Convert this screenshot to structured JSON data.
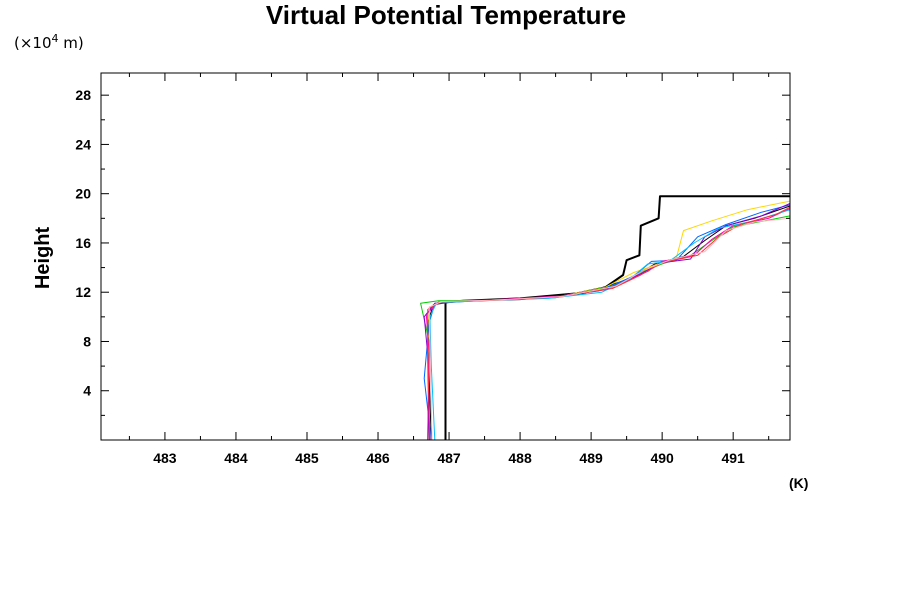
{
  "chart_data": {
    "type": "line",
    "title": "Virtual Potential Temperature",
    "ylabel": "Height",
    "y_unit_prefix": "(×10",
    "y_unit_exponent": "4",
    "y_unit_suffix": " m)",
    "x_unit": "(K)",
    "xlim": [
      482.1,
      491.8
    ],
    "ylim": [
      0,
      29.8
    ],
    "x_ticks": [
      483,
      484,
      485,
      486,
      487,
      488,
      489,
      490,
      491
    ],
    "x_tick_labels": [
      "483",
      "484",
      "485",
      "486",
      "487",
      "488",
      "489",
      "490",
      "491"
    ],
    "y_ticks": [
      4,
      8,
      12,
      16,
      20,
      24,
      28
    ],
    "y_tick_labels": [
      "4",
      "8",
      "12",
      "16",
      "20",
      "24",
      "28"
    ],
    "legend": "none",
    "grid": false,
    "series": [
      {
        "color": "#000000",
        "width": 2,
        "points": [
          [
            486.95,
            0
          ],
          [
            486.95,
            11.2
          ],
          [
            487.2,
            11.3
          ],
          [
            488.0,
            11.5
          ],
          [
            488.8,
            11.9
          ],
          [
            489.2,
            12.4
          ],
          [
            489.45,
            13.4
          ],
          [
            489.5,
            14.6
          ],
          [
            489.68,
            15.0
          ],
          [
            489.7,
            17.4
          ],
          [
            489.95,
            18.0
          ],
          [
            489.97,
            19.8
          ],
          [
            490.3,
            19.8
          ],
          [
            491.8,
            19.8
          ]
        ]
      },
      {
        "color": "#000000",
        "width": 1,
        "points": [
          [
            486.75,
            0
          ],
          [
            486.72,
            5
          ],
          [
            486.7,
            9.5
          ],
          [
            486.78,
            11.0
          ],
          [
            487.2,
            11.3
          ],
          [
            488.0,
            11.4
          ],
          [
            488.9,
            11.9
          ],
          [
            489.5,
            13.0
          ],
          [
            489.9,
            14.3
          ],
          [
            490.3,
            14.9
          ],
          [
            490.6,
            16.2
          ],
          [
            490.9,
            17.4
          ],
          [
            491.3,
            18.0
          ],
          [
            491.8,
            19.0
          ]
        ]
      },
      {
        "color": "#ffd700",
        "width": 1,
        "points": [
          [
            486.72,
            0
          ],
          [
            486.7,
            6
          ],
          [
            486.72,
            10.5
          ],
          [
            486.85,
            11.2
          ],
          [
            487.5,
            11.3
          ],
          [
            488.5,
            11.6
          ],
          [
            489.2,
            12.4
          ],
          [
            489.6,
            13.6
          ],
          [
            489.9,
            14.2
          ],
          [
            490.2,
            14.8
          ],
          [
            490.3,
            17.0
          ],
          [
            490.7,
            17.8
          ],
          [
            491.2,
            18.7
          ],
          [
            491.8,
            19.4
          ]
        ]
      },
      {
        "color": "#00cc00",
        "width": 1,
        "points": [
          [
            486.7,
            0
          ],
          [
            486.72,
            8
          ],
          [
            486.6,
            11.1
          ],
          [
            486.85,
            11.3
          ],
          [
            487.5,
            11.35
          ],
          [
            488.5,
            11.55
          ],
          [
            489.3,
            12.5
          ],
          [
            489.7,
            13.6
          ],
          [
            490.0,
            14.3
          ],
          [
            490.4,
            15.0
          ],
          [
            490.7,
            16.2
          ],
          [
            491.0,
            17.3
          ],
          [
            491.8,
            18.2
          ]
        ]
      },
      {
        "color": "#0066ff",
        "width": 1,
        "points": [
          [
            486.75,
            0
          ],
          [
            486.65,
            5
          ],
          [
            486.72,
            9.5
          ],
          [
            486.8,
            11.1
          ],
          [
            487.3,
            11.3
          ],
          [
            488.3,
            11.5
          ],
          [
            489.1,
            12.1
          ],
          [
            489.6,
            13.3
          ],
          [
            489.85,
            14.5
          ],
          [
            490.2,
            14.6
          ],
          [
            490.5,
            16.5
          ],
          [
            490.9,
            17.5
          ],
          [
            491.4,
            18.5
          ],
          [
            491.8,
            19.1
          ]
        ]
      },
      {
        "color": "#ff00aa",
        "width": 1,
        "points": [
          [
            486.7,
            0
          ],
          [
            486.72,
            7
          ],
          [
            486.68,
            10.2
          ],
          [
            486.85,
            11.2
          ],
          [
            487.5,
            11.35
          ],
          [
            488.6,
            11.7
          ],
          [
            489.3,
            12.4
          ],
          [
            489.8,
            13.7
          ],
          [
            490.0,
            14.5
          ],
          [
            490.45,
            15.0
          ],
          [
            490.7,
            16.3
          ],
          [
            491.0,
            17.4
          ],
          [
            491.5,
            18.0
          ],
          [
            491.8,
            18.8
          ]
        ]
      },
      {
        "color": "#8800cc",
        "width": 1,
        "points": [
          [
            486.72,
            0
          ],
          [
            486.7,
            7
          ],
          [
            486.65,
            10.0
          ],
          [
            486.8,
            11.1
          ],
          [
            487.4,
            11.3
          ],
          [
            488.4,
            11.55
          ],
          [
            489.2,
            12.2
          ],
          [
            489.7,
            13.5
          ],
          [
            490.0,
            14.4
          ],
          [
            490.4,
            14.7
          ],
          [
            490.6,
            16.5
          ],
          [
            490.9,
            17.4
          ],
          [
            491.4,
            18.2
          ],
          [
            491.8,
            19.2
          ]
        ]
      },
      {
        "color": "#00bfff",
        "width": 1,
        "points": [
          [
            486.8,
            0
          ],
          [
            486.75,
            6
          ],
          [
            486.73,
            10
          ],
          [
            486.82,
            11.1
          ],
          [
            487.4,
            11.3
          ],
          [
            488.4,
            11.5
          ],
          [
            489.15,
            12.0
          ],
          [
            489.55,
            13.1
          ],
          [
            489.8,
            14.3
          ],
          [
            490.1,
            14.5
          ],
          [
            490.45,
            16.0
          ],
          [
            490.8,
            17.2
          ],
          [
            491.3,
            17.8
          ],
          [
            491.8,
            18.7
          ]
        ]
      },
      {
        "color": "#ff3333",
        "width": 1,
        "points": [
          [
            486.73,
            0
          ],
          [
            486.7,
            7
          ],
          [
            486.7,
            10.6
          ],
          [
            486.85,
            11.2
          ],
          [
            487.5,
            11.3
          ],
          [
            488.5,
            11.6
          ],
          [
            489.3,
            12.3
          ],
          [
            489.7,
            13.4
          ],
          [
            490.0,
            14.4
          ],
          [
            490.5,
            15.0
          ],
          [
            490.8,
            16.5
          ],
          [
            491.1,
            17.5
          ],
          [
            491.6,
            18.3
          ],
          [
            491.8,
            18.9
          ]
        ]
      },
      {
        "color": "#ffb6c1",
        "width": 1,
        "points": [
          [
            486.76,
            0
          ],
          [
            486.73,
            8
          ],
          [
            486.72,
            10.8
          ],
          [
            486.9,
            11.25
          ],
          [
            487.6,
            11.35
          ],
          [
            488.6,
            11.65
          ],
          [
            489.35,
            12.5
          ],
          [
            489.75,
            13.8
          ],
          [
            490.1,
            14.6
          ],
          [
            490.6,
            15.3
          ],
          [
            490.9,
            17.0
          ],
          [
            491.3,
            17.7
          ],
          [
            491.8,
            18.0
          ]
        ]
      }
    ]
  }
}
